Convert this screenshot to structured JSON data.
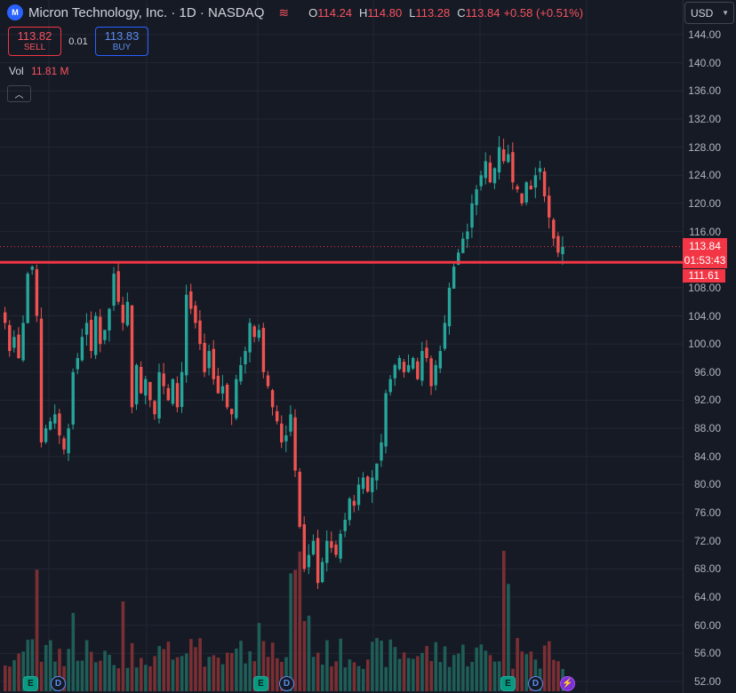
{
  "header": {
    "symbol_title": "Micron Technology, Inc. · 1D · NASDAQ",
    "logo_text": "M",
    "open_label": "O",
    "open_value": "114.24",
    "high_label": "H",
    "high_value": "114.80",
    "low_label": "L",
    "low_value": "113.28",
    "close_label": "C",
    "close_value": "113.84",
    "change": "+0.58 (+0.51%)"
  },
  "trade": {
    "sell_price": "113.82",
    "sell_label": "SELL",
    "spread": "0.01",
    "buy_price": "113.83",
    "buy_label": "BUY"
  },
  "volume": {
    "label": "Vol",
    "value": "11.81 M"
  },
  "currency": "USD",
  "price_axis": {
    "ticks": [
      "144.00",
      "140.00",
      "136.00",
      "132.00",
      "128.00",
      "124.00",
      "120.00",
      "116.00",
      "108.00",
      "104.00",
      "100.00",
      "96.00",
      "92.00",
      "88.00",
      "84.00",
      "80.00",
      "76.00",
      "72.00",
      "68.00",
      "64.00",
      "60.00",
      "56.00",
      "52.00"
    ],
    "last_price": "113.84",
    "countdown": "01:53:43",
    "line_price": "111.61"
  },
  "horizontal_line": {
    "price": 111.61,
    "color": "#f23645"
  },
  "events": [
    {
      "type": "earnings",
      "text": "E"
    },
    {
      "type": "dividend",
      "text": "D"
    },
    {
      "type": "earnings",
      "text": "E"
    },
    {
      "type": "dividend",
      "text": "D"
    },
    {
      "type": "earnings",
      "text": "E"
    },
    {
      "type": "dividend",
      "text": "D"
    },
    {
      "type": "news",
      "text": "⚡"
    }
  ],
  "colors": {
    "up": "#26a69a",
    "down": "#ef5350",
    "bg": "#161a25",
    "grid": "#232735"
  },
  "chart_data": {
    "type": "candlestick",
    "ylim": [
      50,
      146
    ],
    "closes": [
      103,
      99,
      101,
      98,
      103,
      110,
      111,
      104,
      86,
      88,
      89,
      90,
      87,
      85,
      88,
      96,
      98,
      101,
      103,
      99,
      104,
      100,
      102,
      105,
      110,
      106,
      103,
      106,
      91,
      97,
      93,
      95,
      92,
      90,
      96,
      94,
      92,
      95,
      91,
      96,
      107,
      105,
      103,
      100,
      96,
      99,
      95,
      93,
      94,
      91,
      90,
      95,
      97,
      99,
      103,
      101,
      102,
      96,
      94,
      91,
      89,
      86,
      87,
      90,
      82,
      74,
      68,
      70,
      72,
      66,
      69,
      72,
      71,
      70,
      73,
      75,
      78,
      77,
      80,
      81,
      79,
      81,
      83,
      86,
      93,
      95,
      97,
      98,
      96,
      97,
      98,
      95,
      99,
      98,
      94,
      97,
      99,
      103,
      108,
      111,
      113,
      115,
      116,
      120,
      122,
      124,
      126,
      123,
      125,
      128,
      126,
      127,
      123,
      122,
      120,
      123,
      122,
      124,
      125,
      121,
      118,
      115,
      113,
      113.84
    ],
    "volume_note": "volume bars in lower pane, relative"
  }
}
